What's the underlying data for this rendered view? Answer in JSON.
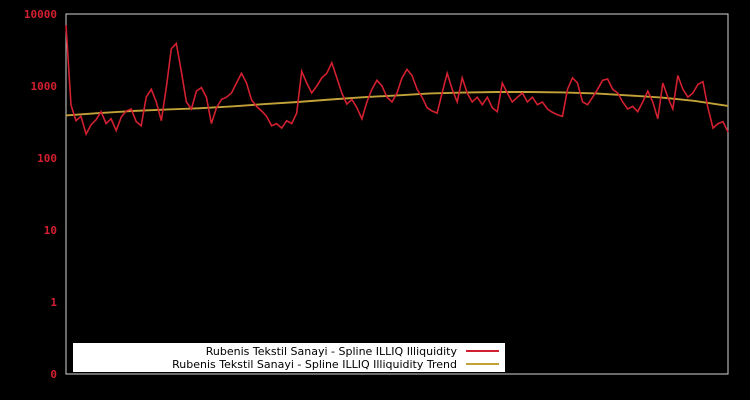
{
  "chart_data": {
    "type": "line",
    "title": "",
    "xlabel": "",
    "ylabel": "",
    "yscale": "log",
    "ylim": [
      0.1,
      10000
    ],
    "grid": false,
    "legend_position": "bottom-center",
    "yticks": [
      "10000",
      "1000",
      "100",
      "10",
      "1",
      "0"
    ],
    "ytick_values": [
      10000,
      1000,
      100,
      10,
      1,
      0.1
    ],
    "xticks": [],
    "colors": {
      "background": "#000000",
      "plot_border": "#d4d4d4",
      "tick_labels": "#d22030",
      "legend_background": "#ffffff",
      "legend_text": "#000000"
    },
    "series": [
      {
        "name": "Rubenis Tekstil Sanayi - Spline ILLIQ Illiquidity",
        "color": "#d22030",
        "stroke_width": 1.6,
        "values": [
          7000,
          545,
          330,
          380,
          215,
          290,
          340,
          440,
          300,
          350,
          240,
          370,
          450,
          480,
          320,
          280,
          700,
          900,
          600,
          330,
          950,
          3300,
          3900,
          1600,
          600,
          480,
          850,
          950,
          700,
          300,
          500,
          650,
          700,
          800,
          1100,
          1500,
          1100,
          640,
          520,
          450,
          380,
          280,
          300,
          260,
          330,
          300,
          420,
          1600,
          1100,
          800,
          1000,
          1300,
          1500,
          2100,
          1300,
          800,
          560,
          650,
          500,
          350,
          600,
          900,
          1200,
          1000,
          700,
          600,
          800,
          1300,
          1700,
          1400,
          900,
          700,
          500,
          450,
          420,
          800,
          1500,
          900,
          600,
          1300,
          800,
          600,
          700,
          550,
          700,
          500,
          440,
          1100,
          800,
          600,
          700,
          800,
          600,
          700,
          550,
          600,
          480,
          430,
          400,
          380,
          900,
          1300,
          1100,
          600,
          550,
          700,
          900,
          1200,
          1250,
          900,
          800,
          600,
          480,
          520,
          440,
          600,
          850,
          600,
          350,
          1100,
          700,
          480,
          1400,
          900,
          700,
          800,
          1050,
          1150,
          500,
          260,
          300,
          320,
          230
        ]
      },
      {
        "name": "Rubenis Tekstil Sanayi - Spline ILLIQ Illiquidity Trend",
        "color": "#c2a238",
        "stroke_width": 1.9,
        "values": [
          390,
          420,
          450,
          470,
          490,
          520,
          560,
          600,
          650,
          700,
          740,
          790,
          810,
          825,
          825,
          815,
          790,
          740,
          690,
          620,
          530
        ]
      }
    ]
  }
}
